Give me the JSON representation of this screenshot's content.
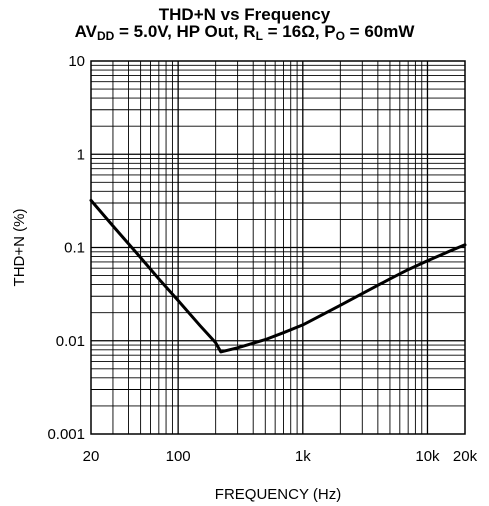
{
  "chart_data": {
    "type": "line",
    "title": {
      "line1": "THD+N vs Frequency",
      "line2": {
        "av": "AV",
        "av_sub": "DD",
        "mid": " = 5.0V, HP Out, R",
        "rl_sub": "L",
        "mid2": " = 16Ω, P",
        "po_sub": "O",
        "tail": " = 60mW"
      }
    },
    "xlabel": "FREQUENCY (Hz)",
    "ylabel": "THD+N (%)",
    "x_scale": "log",
    "y_scale": "log",
    "xlim": [
      20,
      20000
    ],
    "ylim": [
      0.001,
      10
    ],
    "x_ticks": [
      {
        "value": 20,
        "label": "20"
      },
      {
        "value": 100,
        "label": "100"
      },
      {
        "value": 1000,
        "label": "1k"
      },
      {
        "value": 10000,
        "label": "10k"
      },
      {
        "value": 20000,
        "label": "20k"
      }
    ],
    "y_ticks": [
      {
        "value": 10,
        "label": "10"
      },
      {
        "value": 1,
        "label": "1"
      },
      {
        "value": 0.1,
        "label": "0.1"
      },
      {
        "value": 0.01,
        "label": "0.01"
      },
      {
        "value": 0.001,
        "label": "0.001"
      }
    ],
    "grid": true,
    "series": [
      {
        "x": [
          20,
          30,
          50,
          70,
          100,
          150,
          200,
          220,
          300,
          500,
          700,
          1000,
          2000,
          3000,
          5000,
          7000,
          10000,
          15000,
          20000
        ],
        "y": [
          0.32,
          0.17,
          0.078,
          0.046,
          0.027,
          0.0145,
          0.0095,
          0.0076,
          0.0084,
          0.0103,
          0.0122,
          0.0148,
          0.024,
          0.032,
          0.046,
          0.058,
          0.072,
          0.091,
          0.107
        ]
      }
    ]
  }
}
